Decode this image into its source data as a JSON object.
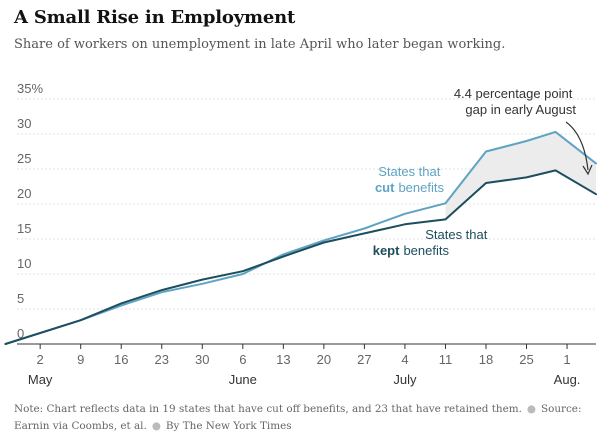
{
  "title": "A Small Rise in Employment",
  "subtitle": "Share of workers on unemployment in late April who later began working.",
  "note": {
    "text": "Note: Chart reflects data in 19 states that have cut off benefits, and 23 that have retained them.",
    "source": "Source: Earnin via Coombs, et al.",
    "credit": "By The New York Times"
  },
  "colors": {
    "cut": "#5fa3c4",
    "kept": "#1d4e5e",
    "gap_fill": "#ececec",
    "grid": "#d8d8d8",
    "axis": "#333333"
  },
  "chart_data": {
    "type": "line",
    "title": "A Small Rise in Employment",
    "subtitle": "Share of workers on unemployment in late April who later began working.",
    "xlabel": "",
    "ylabel": "",
    "ylim": [
      0,
      35
    ],
    "y_ticks": [
      "35%",
      "30",
      "25",
      "20",
      "15",
      "10",
      "5",
      "0"
    ],
    "x_ticks": [
      "2",
      "9",
      "16",
      "23",
      "30",
      "6",
      "13",
      "20",
      "27",
      "4",
      "11",
      "18",
      "25",
      "1"
    ],
    "x_tick_dates": [
      "2021-05-02",
      "2021-05-09",
      "2021-05-16",
      "2021-05-23",
      "2021-05-30",
      "2021-06-06",
      "2021-06-13",
      "2021-06-20",
      "2021-06-27",
      "2021-07-04",
      "2021-07-11",
      "2021-07-18",
      "2021-07-25",
      "2021-08-01"
    ],
    "month_labels": [
      {
        "label": "May",
        "date": "2021-05-02"
      },
      {
        "label": "June",
        "date": "2021-06-06"
      },
      {
        "label": "July",
        "date": "2021-07-04"
      },
      {
        "label": "Aug.",
        "date": "2021-08-01"
      }
    ],
    "grid": true,
    "x_range": [
      "2021-04-28",
      "2021-08-06"
    ],
    "series": [
      {
        "key": "cut",
        "label_parts": [
          "States that",
          "cut",
          "benefits"
        ],
        "points": [
          [
            "2021-04-26",
            0
          ],
          [
            "2021-05-09",
            3.4
          ],
          [
            "2021-05-16",
            5.5
          ],
          [
            "2021-05-23",
            7.4
          ],
          [
            "2021-05-30",
            8.6
          ],
          [
            "2021-06-06",
            10.0
          ],
          [
            "2021-06-13",
            12.8
          ],
          [
            "2021-06-20",
            14.8
          ],
          [
            "2021-06-27",
            16.5
          ],
          [
            "2021-07-04",
            18.6
          ],
          [
            "2021-07-11",
            20.1
          ],
          [
            "2021-07-18",
            27.5
          ],
          [
            "2021-07-25",
            29.0
          ],
          [
            "2021-07-30",
            30.3
          ],
          [
            "2021-08-06",
            25.8
          ]
        ]
      },
      {
        "key": "kept",
        "label_parts": [
          "States that",
          "kept",
          "benefits"
        ],
        "points": [
          [
            "2021-04-26",
            0
          ],
          [
            "2021-05-09",
            3.4
          ],
          [
            "2021-05-16",
            5.8
          ],
          [
            "2021-05-23",
            7.7
          ],
          [
            "2021-05-30",
            9.2
          ],
          [
            "2021-06-06",
            10.4
          ],
          [
            "2021-06-13",
            12.5
          ],
          [
            "2021-06-20",
            14.5
          ],
          [
            "2021-06-27",
            15.8
          ],
          [
            "2021-07-04",
            17.1
          ],
          [
            "2021-07-11",
            17.8
          ],
          [
            "2021-07-18",
            23.0
          ],
          [
            "2021-07-25",
            23.8
          ],
          [
            "2021-07-30",
            24.8
          ],
          [
            "2021-08-06",
            21.4
          ]
        ]
      }
    ],
    "annotations": [
      {
        "text": [
          "4.4 percentage point",
          "gap in early August"
        ]
      }
    ]
  }
}
